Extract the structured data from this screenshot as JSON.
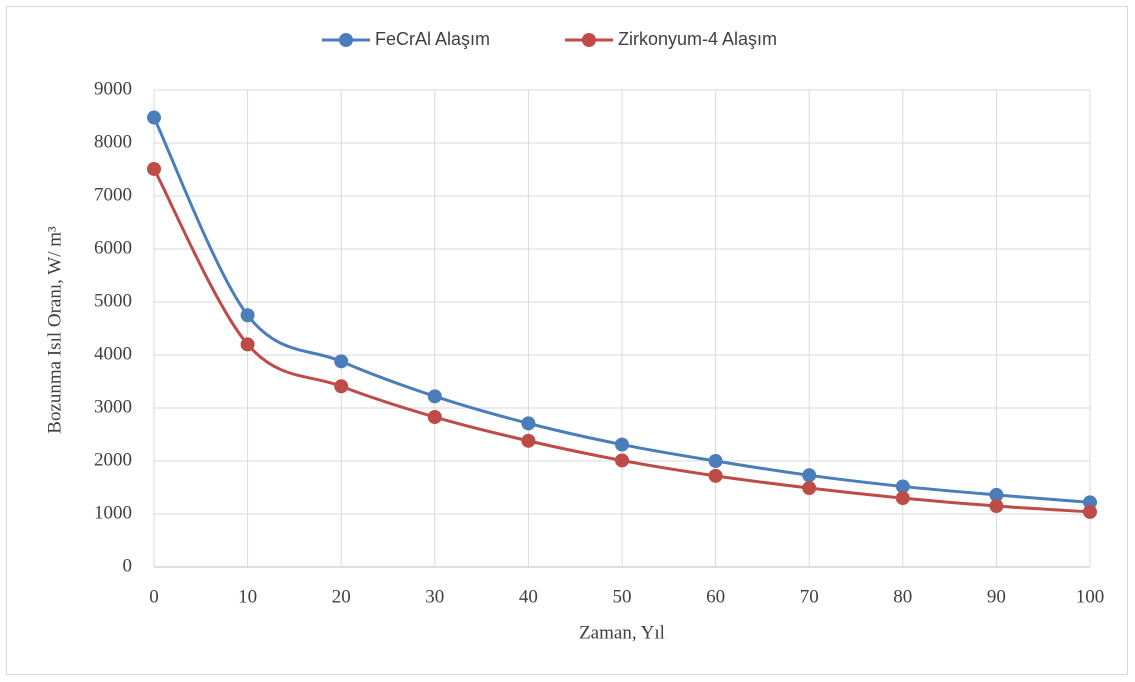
{
  "chart_data": {
    "type": "line",
    "x_label": "Zaman, Yıl",
    "y_label": "Bozunma Isıl Oranı, W/ m³",
    "x": [
      0,
      10,
      20,
      30,
      40,
      50,
      60,
      70,
      80,
      90,
      100
    ],
    "series": [
      {
        "name": "FeCrAl Alaşım",
        "color": "#4a7ebb",
        "values": [
          8480,
          4750,
          3880,
          3220,
          2710,
          2310,
          2000,
          1730,
          1520,
          1360,
          1220
        ]
      },
      {
        "name": "Zirkonyum-4 Alaşım",
        "color": "#be4b48",
        "values": [
          7510,
          4200,
          3410,
          2830,
          2380,
          2010,
          1720,
          1490,
          1300,
          1150,
          1040
        ]
      }
    ],
    "xlim": [
      0,
      100
    ],
    "xticks": [
      0,
      10,
      20,
      30,
      40,
      50,
      60,
      70,
      80,
      90,
      100
    ],
    "ylim": [
      0,
      9000
    ],
    "yticks": [
      0,
      1000,
      2000,
      3000,
      4000,
      5000,
      6000,
      7000,
      8000,
      9000
    ],
    "grid": true,
    "smooth": true,
    "legend": "top"
  }
}
